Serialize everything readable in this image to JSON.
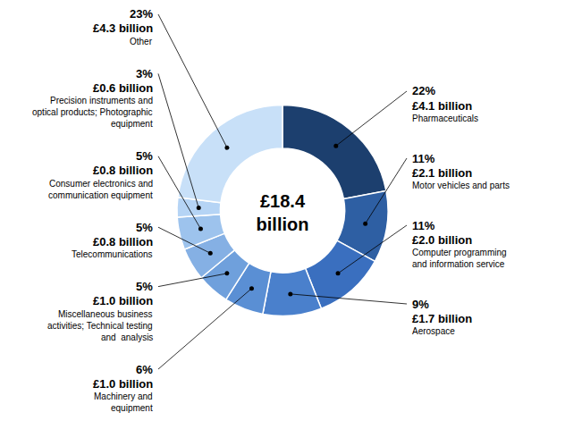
{
  "chart_data": {
    "type": "pie",
    "title": "£18.4\nbillion",
    "categories": [
      "Pharmaceuticals",
      "Motor vehicles and parts",
      "Computer programming\nand information service",
      "Aerospace",
      "Machinery and\nequipment",
      "Miscellaneous business\nactivities; Technical testing\nand  analysis",
      "Telecommunications",
      "Consumer electronics and\ncommunication equipment",
      "Precision instruments and\noptical products; Photographic\nequipment",
      "Other"
    ],
    "values": [
      22,
      11,
      11,
      9,
      6,
      5,
      5,
      5,
      3,
      23
    ],
    "value_labels": [
      "22%",
      "11%",
      "11%",
      "9%",
      "6%",
      "5%",
      "5%",
      "5%",
      "3%",
      "23%"
    ],
    "amount_labels": [
      "£4.1 billion",
      "£2.1 billion",
      "£2.0 billion",
      "£1.7 billion",
      "£1.0 billion",
      "£1.0 billion",
      "£0.8 billion",
      "£0.8 billion",
      "£0.6 billion",
      "£4.3 billion"
    ],
    "colors": [
      "#1c3f6e",
      "#2e5fa3",
      "#3a6fbf",
      "#4a80cc",
      "#5a8fd4",
      "#6fa0dc",
      "#85b0e4",
      "#9dc3ed",
      "#b5d4f5",
      "#c8e0f8"
    ]
  }
}
